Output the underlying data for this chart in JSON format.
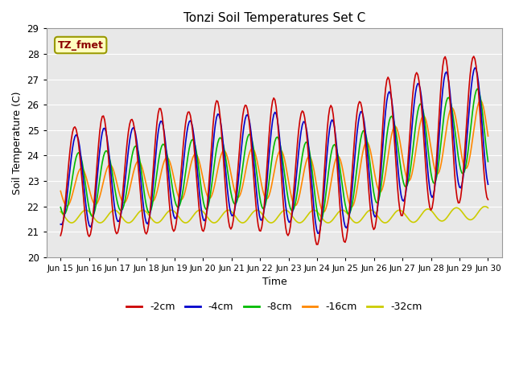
{
  "title": "Tonzi Soil Temperatures Set C",
  "xlabel": "Time",
  "ylabel": "Soil Temperature (C)",
  "ylim": [
    20.0,
    29.0
  ],
  "yticks": [
    20.0,
    21.0,
    22.0,
    23.0,
    24.0,
    25.0,
    26.0,
    27.0,
    28.0,
    29.0
  ],
  "annotation_label": "TZ_fmet",
  "colors": {
    "-2cm": "#cc0000",
    "-4cm": "#0000cc",
    "-8cm": "#00bb00",
    "-16cm": "#ff8800",
    "-32cm": "#cccc00"
  },
  "line_widths": {
    "-2cm": 1.2,
    "-4cm": 1.2,
    "-8cm": 1.2,
    "-16cm": 1.2,
    "-32cm": 1.2
  },
  "legend_labels": [
    "-2cm",
    "-4cm",
    "-8cm",
    "-16cm",
    "-32cm"
  ],
  "fig_bg_color": "#ffffff",
  "plot_bg_color": "#e8e8e8",
  "grid_color": "#ffffff",
  "num_points": 360,
  "date_start": 15,
  "date_end": 30,
  "xtick_labels": [
    "Jun 15",
    "Jun 16",
    "Jun 17",
    "Jun 18",
    "Jun 19",
    "Jun 20",
    "Jun 21",
    "Jun 22",
    "Jun 23",
    "Jun 24",
    "Jun 25",
    "Jun 26",
    "Jun 27",
    "Jun 28",
    "Jun 29",
    "Jun 30"
  ]
}
